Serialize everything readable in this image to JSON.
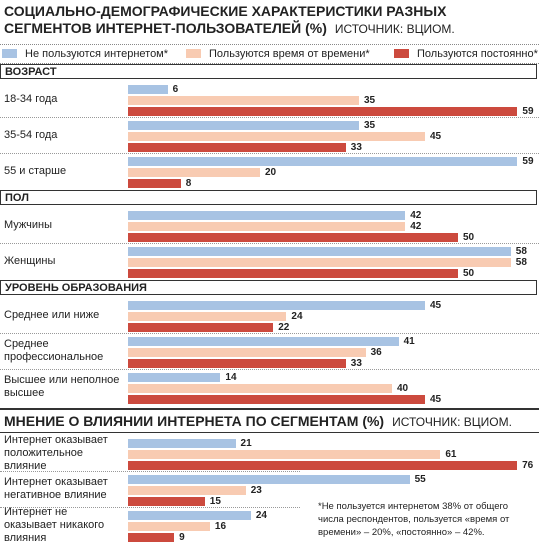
{
  "chart_data": [
    {
      "type": "bar",
      "title": "СОЦИАЛЬНО-ДЕМОГРАФИЧЕСКИЕ ХАРАКТЕРИСТИКИ РАЗНЫХ СЕГМЕНТОВ ИНТЕРНЕТ-ПОЛЬЗОВАТЕЛЕЙ (%)",
      "source": "ИСТОЧНИК: ВЦИОМ.",
      "series": [
        {
          "name": "Не пользуются интернетом*",
          "color": "#a8c3e3"
        },
        {
          "name": "Пользуются время от времени*",
          "color": "#f8cbb2"
        },
        {
          "name": "Пользуются постоянно*",
          "color": "#cc4a3e"
        }
      ],
      "sections": [
        {
          "name": "ВОЗРАСТ",
          "categories": [
            "18-34 года",
            "35-54 года",
            "55 и старше"
          ],
          "values": [
            [
              6,
              35,
              59
            ],
            [
              35,
              45,
              20
            ],
            [
              59,
              33,
              8
            ]
          ]
        },
        {
          "name": "ПОЛ",
          "categories": [
            "Мужчины",
            "Женщины"
          ],
          "values": [
            [
              42,
              58
            ],
            [
              42,
              58
            ],
            [
              50,
              50
            ]
          ]
        },
        {
          "name": "УРОВЕНЬ ОБРАЗОВАНИЯ",
          "categories": [
            "Среднее или ниже",
            "Среднее профессиональное",
            "Высшее или неполное высшее"
          ],
          "values": [
            [
              45,
              41,
              14
            ],
            [
              24,
              36,
              40
            ],
            [
              22,
              33,
              45
            ]
          ]
        }
      ]
    },
    {
      "type": "bar",
      "title": "МНЕНИЕ О ВЛИЯНИИ ИНТЕРНЕТА ПО СЕГМЕНТАМ (%)",
      "source": "ИСТОЧНИК: ВЦИОМ.",
      "colors": [
        "#a8c3e3",
        "#f8cbb2",
        "#cc4a3e"
      ],
      "categories": [
        "Интернет оказывает положительное влияние",
        "Интернет оказывает негативное влияние",
        "Интернет не оказывает никакого влияния"
      ],
      "values": [
        [
          21,
          55,
          24
        ],
        [
          61,
          23,
          16
        ],
        [
          76,
          15,
          9
        ]
      ],
      "note": "*Не пользуется интернетом 38% от общего числа респондентов, пользуется «время от времени» – 20%, «постоянно» – 42%."
    }
  ]
}
